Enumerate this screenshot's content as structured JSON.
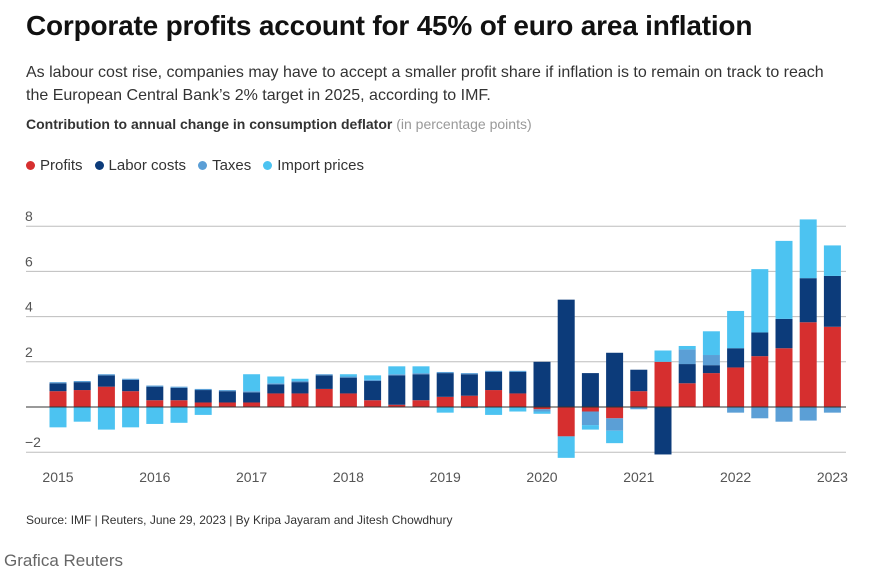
{
  "header": {
    "title": "Corporate profits account for 45% of euro area inflation",
    "subtitle": "As labour cost rise, companies may have to accept a smaller profit share if inflation is to remain on track to reach the European Central Bank’s 2% target in 2025, according to IMF.",
    "chart_label_bold": "Contribution to annual change in consumption deflator",
    "chart_label_unit": "(in percentage points)"
  },
  "footer": {
    "source": "Source: IMF | Reuters, June 29, 2023 | By Kripa Jayaram and Jitesh Chowdhury",
    "brand": "Grafica Reuters"
  },
  "chart_data": {
    "type": "bar",
    "stacked": true,
    "ylim": [
      -2.2,
      8.6
    ],
    "yticks": [
      -2,
      2,
      4,
      6,
      8
    ],
    "ytick_labels": [
      "−2",
      "2",
      "4",
      "6",
      "8"
    ],
    "xtick_labels": [
      "2015",
      "2016",
      "2017",
      "2018",
      "2019",
      "2020",
      "2021",
      "2022",
      "2023"
    ],
    "xtick_quarter_index": [
      0,
      4,
      8,
      12,
      16,
      20,
      24,
      28,
      32
    ],
    "categories": [
      "2015Q1",
      "2015Q2",
      "2015Q3",
      "2015Q4",
      "2016Q1",
      "2016Q2",
      "2016Q3",
      "2016Q4",
      "2017Q1",
      "2017Q2",
      "2017Q3",
      "2017Q4",
      "2018Q1",
      "2018Q2",
      "2018Q3",
      "2018Q4",
      "2019Q1",
      "2019Q2",
      "2019Q3",
      "2019Q4",
      "2020Q1",
      "2020Q2",
      "2020Q3",
      "2020Q4",
      "2021Q1",
      "2021Q2",
      "2021Q3",
      "2021Q4",
      "2022Q1",
      "2022Q2",
      "2022Q3",
      "2022Q4",
      "2023Q1"
    ],
    "series": [
      {
        "name": "Profits",
        "color": "#d62f2f",
        "values": [
          0.7,
          0.75,
          0.9,
          0.7,
          0.3,
          0.3,
          0.2,
          0.2,
          0.2,
          0.6,
          0.6,
          0.8,
          0.6,
          0.3,
          0.1,
          0.3,
          0.45,
          0.5,
          0.75,
          0.6,
          -0.1,
          -1.3,
          -0.2,
          -0.5,
          0.7,
          2.0,
          1.05,
          1.5,
          1.75,
          2.25,
          2.6,
          3.75,
          3.55
        ]
      },
      {
        "name": "Labor costs",
        "color": "#0c3b7a",
        "values": [
          0.35,
          0.35,
          0.5,
          0.5,
          0.6,
          0.55,
          0.55,
          0.5,
          0.45,
          0.4,
          0.5,
          0.6,
          0.7,
          0.85,
          1.3,
          1.15,
          1.05,
          0.95,
          0.8,
          0.95,
          2.0,
          4.75,
          1.5,
          2.4,
          0.95,
          -2.1,
          0.85,
          0.35,
          0.85,
          1.05,
          1.3,
          1.95,
          2.25
        ]
      },
      {
        "name": "Taxes",
        "color": "#5b9fd6",
        "values": [
          0.05,
          0.05,
          0.05,
          0.05,
          0.05,
          0.05,
          0.05,
          0.05,
          0.05,
          0.05,
          0.05,
          0.05,
          0.05,
          0.05,
          0.05,
          0.05,
          0.05,
          0.05,
          0.05,
          0.05,
          -0.1,
          0.0,
          -0.6,
          -0.55,
          -0.1,
          0.0,
          0.65,
          0.45,
          -0.25,
          -0.5,
          -0.65,
          -0.6,
          -0.25
        ]
      },
      {
        "name": "Import prices",
        "color": "#4cc3f1",
        "values": [
          -0.9,
          -0.65,
          -1.0,
          -0.9,
          -0.75,
          -0.7,
          -0.35,
          0.0,
          0.75,
          0.3,
          0.1,
          0.0,
          0.1,
          0.2,
          0.35,
          0.3,
          -0.25,
          -0.05,
          -0.35,
          -0.2,
          -0.1,
          -0.95,
          -0.2,
          -0.55,
          0.0,
          0.5,
          0.15,
          1.05,
          1.65,
          2.8,
          3.45,
          2.6,
          1.35
        ]
      }
    ]
  }
}
